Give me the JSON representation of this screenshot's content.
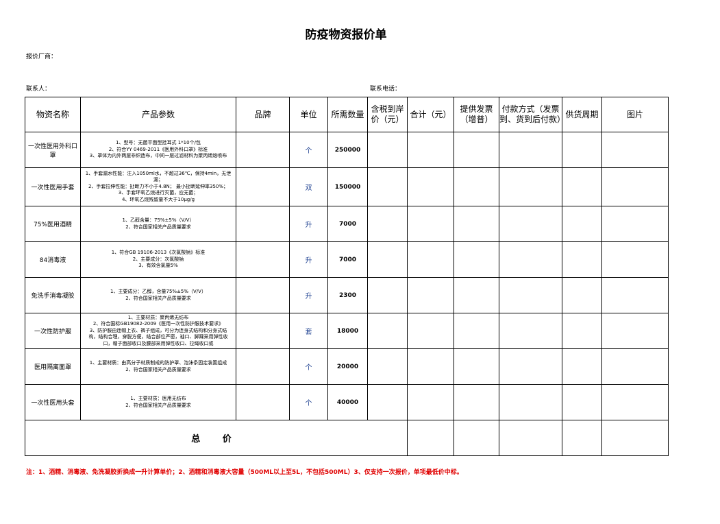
{
  "title": "防疫物资报价单",
  "supplier_label": "报价厂商：",
  "contact_label": "联系人：",
  "phone_label": "联系电话：",
  "headers": [
    "物资名称",
    "产品参数",
    "品牌",
    "单位",
    "所需数量",
    "含税到岸价（元）",
    "合计（元）",
    "提供发票（增普）",
    "付款方式（发票到、货到后付款）",
    "供货周期",
    "图片"
  ],
  "rows": [
    {
      "name": "一次性医用外科口罩",
      "params": [
        "1、型号：无菌平面型挂耳式 1*10个/包",
        "2、符合YY 0469-2011《医用外科口罩》标准",
        "3、罩体为内外两层非织造布，中间一层过滤材料为聚丙烯熔喷布"
      ],
      "unit": "个",
      "qty": "250000"
    },
    {
      "name": "一次性医用手套",
      "params": [
        "1、手套漏水性能：注入1050ml水，不超过36℃，保持4min，无泄漏；",
        "2、手套拉伸性能：扯断力不小于4.8N；  最小扯断延伸率350%；",
        "3、手套环氧乙烷进行灭菌，应无菌；",
        "4、环氧乙烷残留量不大于10μg/g"
      ],
      "unit": "双",
      "qty": "150000"
    },
    {
      "name": "75%医用酒精",
      "params": [
        "1、乙醇含量：75%±5%（V/V）",
        "2、符合国家相关产品质量要求"
      ],
      "unit": "升",
      "qty": "7000"
    },
    {
      "name": "84消毒液",
      "params": [
        "1、符合GB 19106-2013《次氯酸钠》标准",
        "2、主要成分：次氯酸钠",
        "3、有效含氯量5%"
      ],
      "unit": "升",
      "qty": "7000"
    },
    {
      "name": "免洗手消毒凝胶",
      "params": [
        "1、主要成分：乙醇，含量75%±5%（V/V）",
        "2、符合国家相关产品质量要求"
      ],
      "unit": "升",
      "qty": "2300"
    },
    {
      "name": "一次性防护服",
      "params": [
        "1、主要材质：聚丙烯无纺布",
        "2、符合国标GB19082-2009《医用一次性防护服技术要求》",
        "3、防护服由连帽上衣、裤子组成，可分为连身式结构和分身式结构，结构合理，穿脱方便，结合部位严密，袖口、脚踝采用弹性收口，帽子面部收口及腰部采用弹性收口、拉绳收口或"
      ],
      "unit": "套",
      "qty": "18000"
    },
    {
      "name": "医用隔离面罩",
      "params": [
        "1、主要材质：由高分子材质制成的防护罩、泡沫条固定装置组成",
        "2、符合国家相关产品质量要求"
      ],
      "unit": "个",
      "qty": "20000"
    },
    {
      "name": "一次性医用头套",
      "params": [
        "1、主要材质：医用无纺布",
        "2、符合国家相关产品质量要求"
      ],
      "unit": "个",
      "qty": "40000"
    }
  ],
  "total_label": "总 价",
  "note": "注：1、酒精、消毒液、免洗凝胶折换成一升计算单价；2、酒精和消毒液大容量（500ML以上至5L，不包括500ML）3、仅支持一次报价，单项最低价中标。",
  "colors": {
    "note": "#e00000",
    "unit": "#1a3d8f"
  }
}
